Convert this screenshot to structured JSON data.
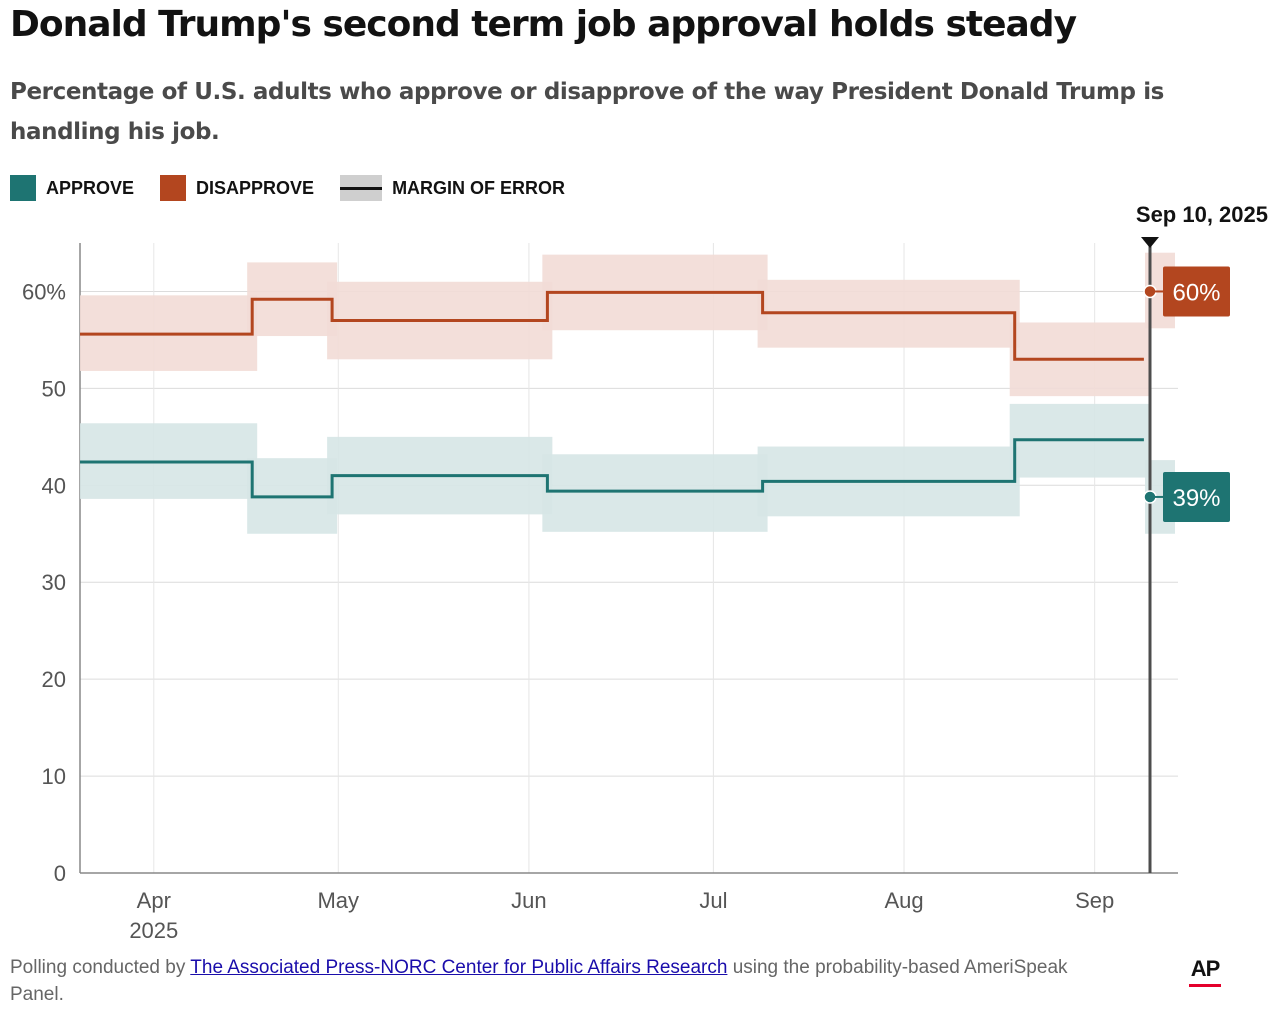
{
  "header": {
    "title": "Donald Trump's second term job approval holds steady",
    "subtitle": "Percentage of U.S. adults who approve or disapprove of the way President Donald Trump is handling his job."
  },
  "legend": {
    "approve": "APPROVE",
    "disapprove": "DISAPPROVE",
    "margin": "MARGIN OF ERROR"
  },
  "colors": {
    "approve": "#1e7472",
    "approve_band": "#d6e6e5",
    "disapprove": "#b3461f",
    "disapprove_band": "#f2dcd6",
    "marker": "#4d4d4d"
  },
  "chart_data": {
    "type": "line",
    "step": true,
    "x_start": "2025-03-20",
    "x_end": "2025-09-10",
    "ylim": [
      0,
      65
    ],
    "yticks": [
      0,
      10,
      20,
      30,
      40,
      50,
      60
    ],
    "ytick_labels": [
      "0",
      "10",
      "20",
      "30",
      "40",
      "50",
      "60%"
    ],
    "xticks": [
      {
        "date": "2025-04-01",
        "label": "Apr",
        "sublabel": "2025"
      },
      {
        "date": "2025-05-01",
        "label": "May",
        "sublabel": ""
      },
      {
        "date": "2025-06-01",
        "label": "Jun",
        "sublabel": ""
      },
      {
        "date": "2025-07-01",
        "label": "Jul",
        "sublabel": ""
      },
      {
        "date": "2025-08-01",
        "label": "Aug",
        "sublabel": ""
      },
      {
        "date": "2025-09-01",
        "label": "Sep",
        "sublabel": ""
      }
    ],
    "grid": true,
    "legend_position": "top-left",
    "marker": {
      "date": "2025-09-10",
      "label": "Sep 10, 2025"
    },
    "series": [
      {
        "name": "APPROVE",
        "color_key": "approve",
        "end_label": "39%",
        "end_value": 39,
        "steps": [
          {
            "start": "2025-03-20",
            "end": "2025-04-17",
            "value": 42.4,
            "low": 38.6,
            "high": 46.4
          },
          {
            "start": "2025-04-17",
            "end": "2025-04-30",
            "value": 38.8,
            "low": 35.0,
            "high": 42.8
          },
          {
            "start": "2025-04-30",
            "end": "2025-06-04",
            "value": 41.0,
            "low": 37.0,
            "high": 45.0
          },
          {
            "start": "2025-06-04",
            "end": "2025-07-09",
            "value": 39.4,
            "low": 35.2,
            "high": 43.2
          },
          {
            "start": "2025-07-09",
            "end": "2025-08-19",
            "value": 40.4,
            "low": 36.8,
            "high": 44.0
          },
          {
            "start": "2025-08-19",
            "end": "2025-09-09",
            "value": 44.7,
            "low": 40.8,
            "high": 48.4
          },
          {
            "start": "2025-09-09",
            "end": "2025-09-10",
            "value": 38.8,
            "low": 35.0,
            "high": 42.6
          }
        ]
      },
      {
        "name": "DISAPPROVE",
        "color_key": "disapprove",
        "end_label": "60%",
        "end_value": 60,
        "steps": [
          {
            "start": "2025-03-20",
            "end": "2025-04-17",
            "value": 55.6,
            "low": 51.8,
            "high": 59.6
          },
          {
            "start": "2025-04-17",
            "end": "2025-04-30",
            "value": 59.2,
            "low": 55.4,
            "high": 63.0
          },
          {
            "start": "2025-04-30",
            "end": "2025-06-04",
            "value": 57.0,
            "low": 53.0,
            "high": 61.0
          },
          {
            "start": "2025-06-04",
            "end": "2025-07-09",
            "value": 59.9,
            "low": 56.0,
            "high": 63.8
          },
          {
            "start": "2025-07-09",
            "end": "2025-08-19",
            "value": 57.8,
            "low": 54.2,
            "high": 61.2
          },
          {
            "start": "2025-08-19",
            "end": "2025-09-09",
            "value": 53.0,
            "low": 49.2,
            "high": 56.8
          },
          {
            "start": "2025-09-09",
            "end": "2025-09-10",
            "value": 60.0,
            "low": 56.2,
            "high": 64.0
          }
        ]
      }
    ]
  },
  "footer": {
    "prefix": "Polling conducted by ",
    "link_text": "The Associated Press-NORC Center for Public Affairs Research",
    "suffix": " using the probability-based AmeriSpeak Panel."
  },
  "logo": {
    "text": "AP"
  }
}
